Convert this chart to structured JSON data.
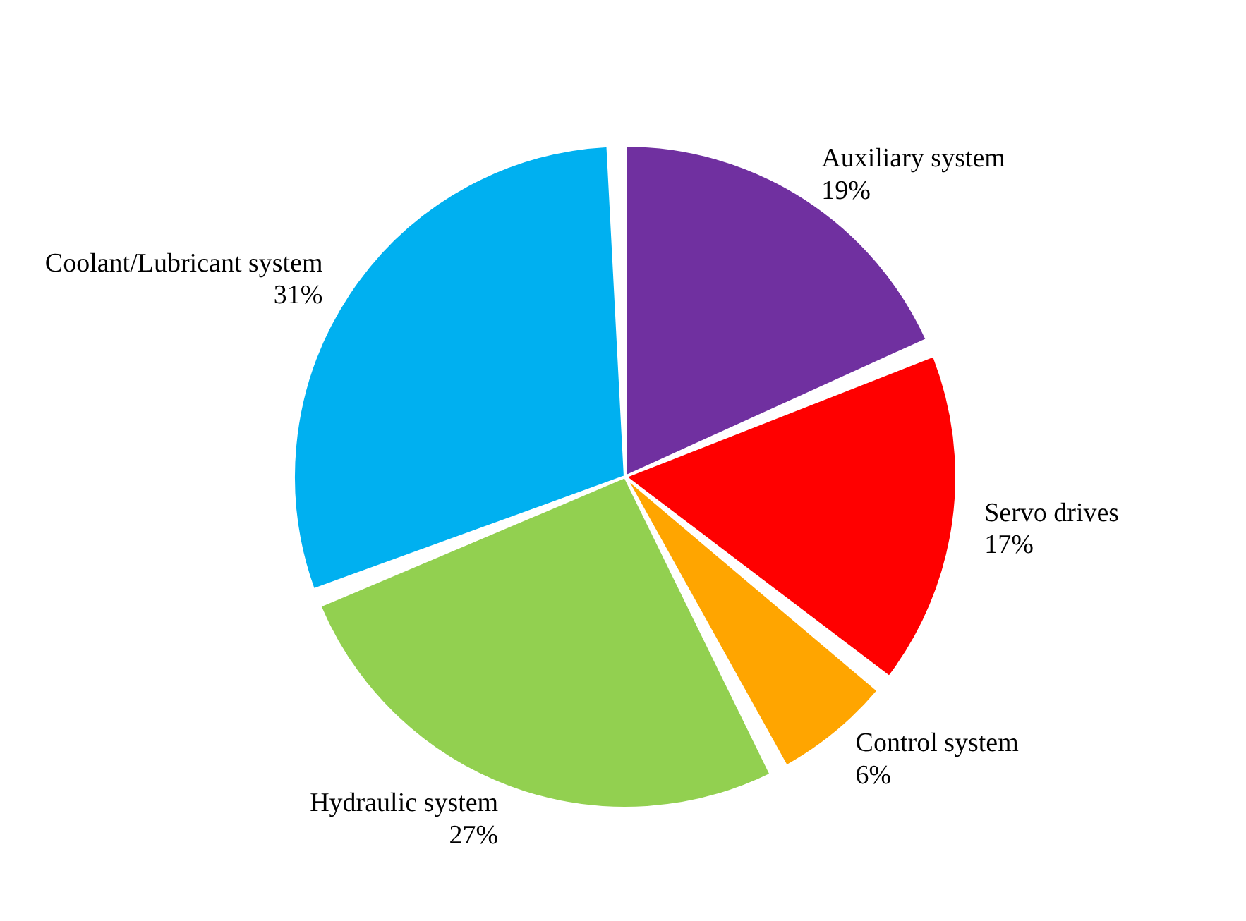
{
  "chart_data": {
    "type": "pie",
    "categories": [
      "Auxiliary system",
      "Servo drives",
      "Control system",
      "Hydraulic system",
      "Coolant/Lubricant system"
    ],
    "values": [
      19,
      17,
      6,
      27,
      31
    ],
    "colors": [
      "#7030a0",
      "#ff0000",
      "#ffa500",
      "#92d050",
      "#00b0f0"
    ],
    "value_labels": [
      "19%",
      "17%",
      "6%",
      "27%",
      "31%"
    ],
    "legend": false
  }
}
